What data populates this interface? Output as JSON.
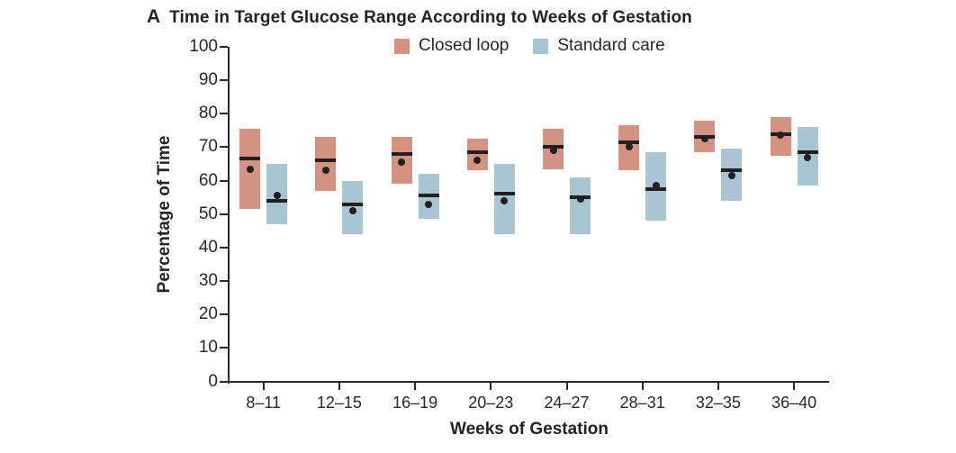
{
  "chart_data": {
    "type": "box",
    "panel_label": "A",
    "title": "Time in Target Glucose Range According to Weeks of Gestation",
    "xlabel": "Weeks of Gestation",
    "ylabel": "Percentage of Time",
    "ylim": [
      0,
      100
    ],
    "ytick_step": 10,
    "grid": "off",
    "legend_position": "top",
    "categories": [
      "8–11",
      "12–15",
      "16–19",
      "20–23",
      "24–27",
      "28–31",
      "32–35",
      "36–40"
    ],
    "series": [
      {
        "name": "Closed loop",
        "color": "#d49280",
        "boxes": [
          {
            "low": 51.5,
            "high": 75.5,
            "median": 66.5,
            "mean": 63.5
          },
          {
            "low": 57.0,
            "high": 73.0,
            "median": 66.0,
            "mean": 63.0
          },
          {
            "low": 59.0,
            "high": 73.0,
            "median": 68.0,
            "mean": 65.5
          },
          {
            "low": 63.0,
            "high": 72.5,
            "median": 68.5,
            "mean": 66.0
          },
          {
            "low": 63.5,
            "high": 75.5,
            "median": 70.0,
            "mean": 69.0
          },
          {
            "low": 63.0,
            "high": 76.5,
            "median": 71.5,
            "mean": 70.0
          },
          {
            "low": 68.5,
            "high": 78.0,
            "median": 73.0,
            "mean": 72.5
          },
          {
            "low": 67.5,
            "high": 79.0,
            "median": 74.0,
            "mean": 73.5
          }
        ]
      },
      {
        "name": "Standard care",
        "color": "#a8c5d3",
        "boxes": [
          {
            "low": 47.0,
            "high": 65.0,
            "median": 54.0,
            "mean": 55.5
          },
          {
            "low": 44.0,
            "high": 60.0,
            "median": 53.0,
            "mean": 51.0
          },
          {
            "low": 48.5,
            "high": 62.0,
            "median": 55.5,
            "mean": 53.0
          },
          {
            "low": 44.0,
            "high": 65.0,
            "median": 56.0,
            "mean": 54.0
          },
          {
            "low": 44.0,
            "high": 61.0,
            "median": 55.0,
            "mean": 54.5
          },
          {
            "low": 48.0,
            "high": 68.5,
            "median": 57.5,
            "mean": 58.5
          },
          {
            "low": 54.0,
            "high": 69.5,
            "median": 63.0,
            "mean": 61.5
          },
          {
            "low": 58.5,
            "high": 76.0,
            "median": 68.5,
            "mean": 67.0
          }
        ]
      }
    ],
    "line_color": "#231f20",
    "axis_color": "#2b2728",
    "text_color": "#2a2627"
  }
}
